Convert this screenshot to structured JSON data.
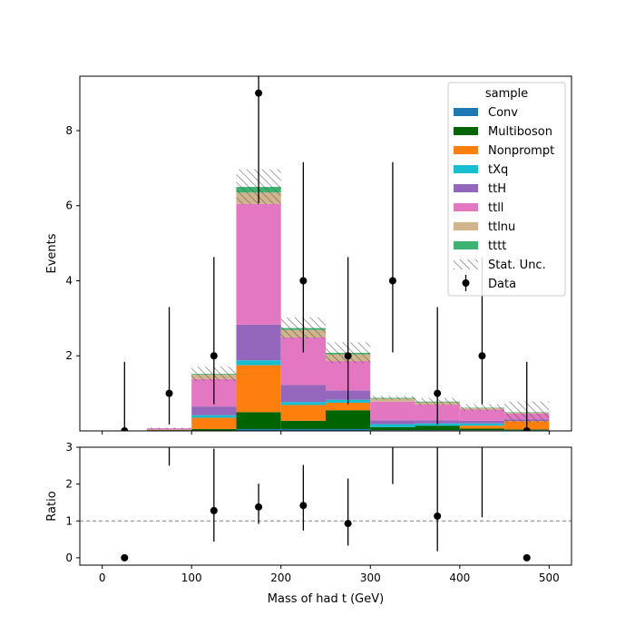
{
  "chart_data": {
    "type": "bar",
    "stacked": true,
    "bin_edges": [
      0,
      50,
      100,
      150,
      200,
      250,
      300,
      350,
      400,
      450,
      500
    ],
    "xlabel": "Mass of had t (GeV)",
    "xlim": [
      -25,
      525
    ],
    "xticks": [
      0,
      100,
      200,
      300,
      400,
      500
    ],
    "main": {
      "ylabel": "Events",
      "ylim": [
        0,
        9.45
      ],
      "yticks": [
        2,
        4,
        6,
        8
      ]
    },
    "ratio": {
      "ylabel": "Ratio",
      "ylim": [
        -0.2,
        3.0
      ],
      "yticks": [
        0,
        1,
        2,
        3
      ],
      "reference_line": 1
    },
    "legend": {
      "title": "sample",
      "placement": "top-right"
    },
    "series": [
      {
        "name": "Conv",
        "color": "#1f77b4",
        "values": [
          0,
          0,
          0,
          0.05,
          0.05,
          0.05,
          0.02,
          0.02,
          0.02,
          0.02
        ]
      },
      {
        "name": "Multiboson",
        "color": "#006400",
        "values": [
          0,
          0.02,
          0.05,
          0.45,
          0.22,
          0.5,
          0.08,
          0.12,
          0.04,
          0.02
        ]
      },
      {
        "name": "Nonprompt",
        "color": "#ff7f0e",
        "values": [
          0,
          0.01,
          0.3,
          1.25,
          0.42,
          0.2,
          0.0,
          0.0,
          0.08,
          0.22
        ]
      },
      {
        "name": "tXq",
        "color": "#17becf",
        "values": [
          0,
          0,
          0.07,
          0.13,
          0.08,
          0.08,
          0.08,
          0.06,
          0.06,
          0.0
        ]
      },
      {
        "name": "ttH",
        "color": "#9467bd",
        "values": [
          0,
          0.01,
          0.23,
          0.95,
          0.45,
          0.25,
          0.1,
          0.08,
          0.07,
          0.05
        ]
      },
      {
        "name": "ttll",
        "color": "#e377c2",
        "values": [
          0,
          0.03,
          0.73,
          3.22,
          1.27,
          0.78,
          0.5,
          0.42,
          0.3,
          0.15
        ]
      },
      {
        "name": "ttlnu",
        "color": "#d2b48c",
        "values": [
          0,
          0,
          0.12,
          0.3,
          0.2,
          0.18,
          0.08,
          0.06,
          0.04,
          0.03
        ]
      },
      {
        "name": "tttt",
        "color": "#3cb371",
        "values": [
          0,
          0,
          0.02,
          0.15,
          0.05,
          0.04,
          0.02,
          0.02,
          0.01,
          0.01
        ]
      }
    ],
    "stat_unc": {
      "name": "Stat. Unc.",
      "half_widths": [
        0.0,
        0.02,
        0.19,
        0.47,
        0.28,
        0.28,
        0.05,
        0.1,
        0.09,
        0.28
      ]
    },
    "data": {
      "name": "Data",
      "x": [
        25,
        75,
        125,
        175,
        225,
        275,
        325,
        375,
        425,
        475
      ],
      "y": [
        0,
        1,
        2,
        9,
        4,
        2,
        4,
        1,
        2,
        0
      ],
      "err_low": [
        0,
        0.83,
        1.29,
        2.94,
        1.91,
        1.29,
        1.91,
        0.83,
        1.29,
        0
      ],
      "err_high": [
        1.84,
        2.3,
        2.63,
        4.11,
        3.16,
        2.63,
        3.16,
        2.3,
        2.63,
        1.84
      ]
    },
    "ratio_points": {
      "x": [
        25,
        75,
        125,
        175,
        225,
        275,
        325,
        375,
        425,
        475
      ],
      "y": [
        0,
        14.5,
        1.28,
        1.38,
        1.42,
        0.93,
        3.8,
        1.13,
        3.3,
        0
      ],
      "err_low": [
        0,
        12.0,
        0.84,
        0.46,
        0.68,
        0.6,
        1.8,
        0.95,
        2.2,
        0
      ],
      "err_high": [
        0,
        33.0,
        1.68,
        0.63,
        1.1,
        1.22,
        2.9,
        2.55,
        4.4,
        0
      ]
    }
  }
}
